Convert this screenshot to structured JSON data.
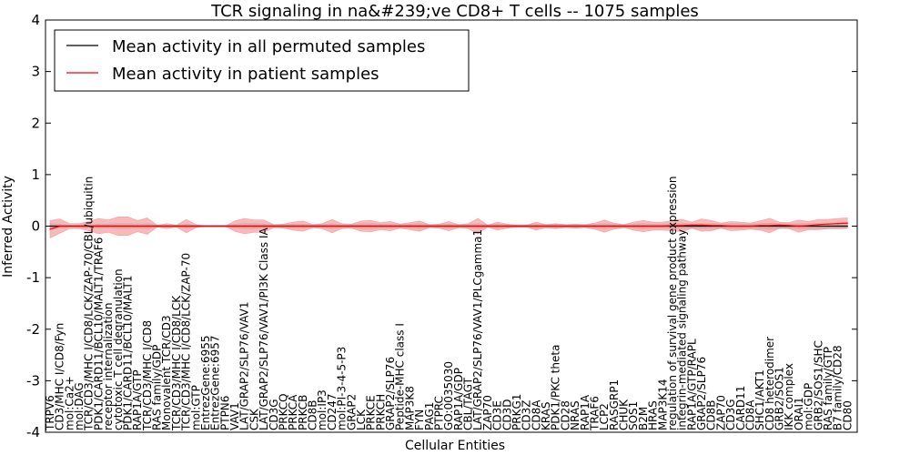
{
  "chart_data": {
    "type": "line",
    "title": "TCR signaling in na&#239;ve CD8+ T cells -- 1075 samples",
    "xlabel": "Cellular Entities",
    "ylabel": "Inferred Activity",
    "ylim": [
      -4,
      4
    ],
    "yticks": [
      -4,
      -3,
      -2,
      -1,
      0,
      1,
      2,
      3,
      4
    ],
    "legend": {
      "position": "top-left",
      "entries": [
        "Mean activity in all permuted samples",
        "Mean activity in patient samples"
      ]
    },
    "colors": {
      "permuted": "#000000",
      "patient": "#ff0000",
      "patient_band": "#f08080",
      "permuted_band": "#c0c0c0"
    },
    "categories": [
      "TRPV6",
      "CD3/MHC I/CD8/Fyn",
      "mol:Ca2+",
      "mol:DAG",
      "TCR/CD3/MHC I/CD8/LCK/ZAP-70/CBL/ubiquitin",
      "PDK1/CARD11/BCL10/MALT1/TRAF6",
      "receptor internalization",
      "cytotoxic T cell degranulation",
      "PDK1/CARD11/BCL10/MALT1",
      "RAP1A/GTP",
      "TCR/CD3/MHC I/CD8",
      "RAS family/GDP",
      "Monovalent TCR/CD3",
      "TCR/CD3/MHC I/CD8/LCK",
      "TCR/CD3/MHC I/CD8/LCK/ZAP-70",
      "mol:GTP",
      "EntrezGene:6955",
      "EntrezGene:6957",
      "PTPN6",
      "VAV1",
      "LAT/GRAP2/SLP76/VAV1",
      "CSK",
      "LAT/GRAP2/SLP76/VAV1/PI3K Class IA",
      "CD3G",
      "PRKCQ",
      "PRKCA",
      "PRKCB",
      "CD8B",
      "mol:IP3",
      "CD247",
      "mol:PI-3-4-5-P3",
      "GRAP2",
      "LCK",
      "PRKCE",
      "PRKCH",
      "GRAP2/SLP76",
      "Peptide-MHC class I",
      "MAP3K8",
      "FYN",
      "PAG1",
      "PTPRC",
      "GO:0035030",
      "RAP1A/GDP",
      "CBL/TAGT",
      "LAT/GRAP2/SLP76/VAV1/PLCgamma1",
      "ZAP70",
      "CD3E",
      "CD3D",
      "PRKG1",
      "CD3Z",
      "CD8A",
      "KRAS",
      "PDK1/PKC theta",
      "CD28",
      "NRAS",
      "RAP1A",
      "TRAF6",
      "LCP2",
      "RASGRP1",
      "CHUK",
      "SOS1",
      "B2M",
      "HRAS",
      "MAP3K14",
      "regulation of survival gene product expression",
      "integrin-mediated signaling pathway",
      "RAP1A/GTP/RAPL",
      "GRAP2/SLP76",
      "CD8B",
      "ZAP70",
      "CD3G",
      "CARD11",
      "CD8A",
      "SHC1/AKT1",
      "CD8 heterodimer",
      "GRB2/SOS1",
      "IKK complex",
      "ORAI1",
      "mol:GDP",
      "GRB2/SOS1/SHC",
      "RAS family/GTP",
      "B7 family/CD28",
      "CD80"
    ],
    "patient_mean": [
      -0.06,
      0.0,
      0.0,
      0.0,
      0.0,
      0.0,
      0.0,
      0.0,
      0.0,
      0.0,
      0.0,
      0.0,
      0.0,
      0.0,
      0.0,
      0.0,
      0.0,
      0.0,
      0.0,
      0.0,
      0.0,
      0.0,
      0.0,
      0.0,
      0.0,
      0.0,
      0.0,
      0.0,
      0.0,
      0.0,
      0.0,
      0.0,
      0.0,
      0.0,
      0.0,
      0.0,
      0.0,
      0.0,
      0.0,
      0.0,
      0.0,
      0.0,
      0.0,
      0.0,
      0.0,
      0.0,
      0.0,
      0.0,
      0.0,
      0.0,
      0.0,
      0.0,
      0.0,
      0.0,
      0.0,
      0.0,
      0.0,
      0.0,
      0.0,
      0.0,
      0.0,
      0.0,
      0.0,
      0.0,
      0.01,
      0.01,
      0.02,
      0.02,
      0.01,
      0.01,
      0.0,
      0.0,
      0.0,
      0.01,
      0.01,
      0.02,
      0.01,
      0.0,
      0.01,
      0.03,
      0.04,
      0.05,
      0.06
    ],
    "patient_spread": [
      0.17,
      0.14,
      0.05,
      0.05,
      0.09,
      0.15,
      0.12,
      0.18,
      0.18,
      0.11,
      0.16,
      0.02,
      0.05,
      0.02,
      0.13,
      0.03,
      0.0,
      0.0,
      0.0,
      0.1,
      0.15,
      0.12,
      0.12,
      0.03,
      0.04,
      0.08,
      0.1,
      0.03,
      0.05,
      0.13,
      0.05,
      0.04,
      0.1,
      0.11,
      0.07,
      0.09,
      0.04,
      0.07,
      0.1,
      0.03,
      0.04,
      0.09,
      0.03,
      0.05,
      0.15,
      0.02,
      0.08,
      0.04,
      0.02,
      0.02,
      0.08,
      0.03,
      0.05,
      0.03,
      0.04,
      0.03,
      0.06,
      0.12,
      0.06,
      0.03,
      0.08,
      0.11,
      0.08,
      0.08,
      0.1,
      0.12,
      0.06,
      0.12,
      0.1,
      0.05,
      0.09,
      0.08,
      0.06,
      0.09,
      0.14,
      0.06,
      0.06,
      0.12,
      0.08,
      0.1,
      0.09,
      0.1,
      0.1
    ],
    "permuted_mean": [
      0.0,
      0.0,
      0.0,
      0.0,
      0.0,
      0.0,
      0.0,
      0.0,
      0.0,
      0.0,
      0.0,
      0.0,
      0.0,
      0.0,
      0.0,
      0.0,
      0.0,
      0.0,
      0.0,
      0.0,
      0.0,
      0.0,
      0.0,
      0.0,
      0.0,
      0.0,
      0.0,
      0.0,
      0.0,
      0.0,
      0.0,
      0.0,
      0.0,
      0.0,
      0.0,
      0.0,
      0.0,
      0.0,
      0.0,
      0.0,
      0.0,
      0.0,
      0.0,
      0.0,
      0.0,
      0.0,
      0.0,
      0.0,
      0.0,
      0.0,
      0.0,
      0.0,
      0.0,
      0.0,
      0.0,
      0.0,
      0.0,
      0.0,
      0.0,
      0.0,
      0.0,
      0.0,
      0.0,
      0.0,
      0.0,
      0.0,
      0.0,
      0.0,
      0.0,
      0.0,
      0.0,
      0.0,
      0.0,
      0.0,
      0.0,
      0.0,
      0.0,
      0.0,
      0.0,
      0.0,
      0.0,
      0.0,
      0.0
    ],
    "permuted_spread": [
      0.05,
      0.04,
      0.02,
      0.02,
      0.03,
      0.04,
      0.04,
      0.05,
      0.05,
      0.04,
      0.05,
      0.02,
      0.02,
      0.02,
      0.04,
      0.02,
      0.02,
      0.02,
      0.02,
      0.04,
      0.05,
      0.05,
      0.04,
      0.03,
      0.03,
      0.04,
      0.04,
      0.03,
      0.03,
      0.05,
      0.03,
      0.03,
      0.05,
      0.05,
      0.04,
      0.04,
      0.03,
      0.04,
      0.05,
      0.03,
      0.03,
      0.04,
      0.03,
      0.03,
      0.05,
      0.03,
      0.04,
      0.03,
      0.03,
      0.03,
      0.04,
      0.03,
      0.04,
      0.03,
      0.03,
      0.03,
      0.04,
      0.05,
      0.04,
      0.03,
      0.04,
      0.05,
      0.04,
      0.04,
      0.05,
      0.05,
      0.04,
      0.05,
      0.05,
      0.04,
      0.05,
      0.05,
      0.04,
      0.05,
      0.06,
      0.05,
      0.04,
      0.05,
      0.05,
      0.05,
      0.05,
      0.05,
      0.05
    ]
  }
}
